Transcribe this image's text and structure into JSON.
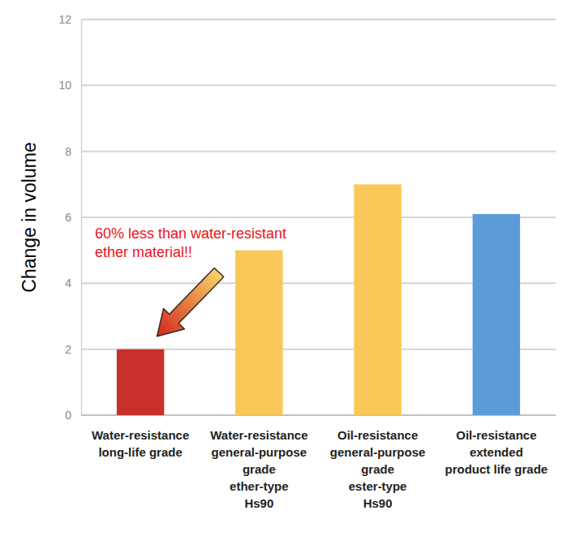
{
  "chart_data": {
    "type": "bar",
    "y_label": "Change in volume",
    "categories": [
      [
        "Water-resistance",
        "long-life grade"
      ],
      [
        "Water-resistance",
        "general-purpose",
        "grade",
        "ether-type",
        "Hs90"
      ],
      [
        "Oil-resistance",
        "general-purpose",
        "grade",
        "ester-type",
        "Hs90"
      ],
      [
        "Oil-resistance",
        "extended",
        "product life grade"
      ]
    ],
    "values": [
      2,
      5,
      7,
      6.1
    ],
    "colors": [
      "#c8312b",
      "#f8c859",
      "#f8c859",
      "#5b9bd6"
    ],
    "ylim": [
      0,
      12
    ],
    "yticks": [
      0,
      2,
      4,
      6,
      8,
      10,
      12
    ],
    "grid": true,
    "annotation": [
      "60% less than water-resistant",
      "ether material!!"
    ]
  }
}
